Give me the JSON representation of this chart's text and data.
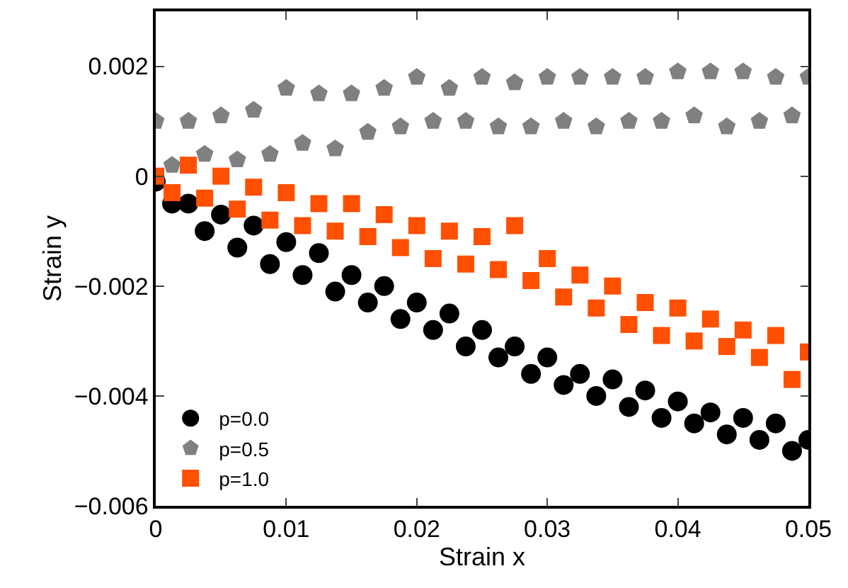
{
  "chart_data": {
    "type": "scatter",
    "xlabel": "Strain x",
    "ylabel": "Strain y",
    "x": [
      0,
      0.00125,
      0.0025,
      0.00375,
      0.005,
      0.00625,
      0.0075,
      0.00875,
      0.01,
      0.01125,
      0.0125,
      0.01375,
      0.015,
      0.01625,
      0.0175,
      0.01875,
      0.02,
      0.02125,
      0.0225,
      0.02375,
      0.025,
      0.02625,
      0.0275,
      0.02875,
      0.03,
      0.03125,
      0.0325,
      0.03375,
      0.035,
      0.03625,
      0.0375,
      0.03875,
      0.04,
      0.04125,
      0.0425,
      0.04375,
      0.045,
      0.04625,
      0.0475,
      0.04875,
      0.05
    ],
    "series": [
      {
        "name": "p=0.0",
        "color": "#000000",
        "marker": "circle",
        "values": [
          -0.0001,
          -0.0005,
          -0.0005,
          -0.001,
          -0.0007,
          -0.0013,
          -0.0009,
          -0.0016,
          -0.0012,
          -0.0018,
          -0.0014,
          -0.0021,
          -0.0018,
          -0.0023,
          -0.002,
          -0.0026,
          -0.0023,
          -0.0028,
          -0.0025,
          -0.0031,
          -0.0028,
          -0.0033,
          -0.0031,
          -0.0036,
          -0.0033,
          -0.0038,
          -0.0036,
          -0.004,
          -0.0037,
          -0.0042,
          -0.0039,
          -0.0044,
          -0.0041,
          -0.0045,
          -0.0043,
          -0.0047,
          -0.0044,
          -0.0048,
          -0.0045,
          -0.005,
          -0.0048
        ]
      },
      {
        "name": "p=0.5",
        "color": "#808080",
        "values": [
          0.001,
          0.0002,
          0.001,
          0.0004,
          0.0011,
          0.0003,
          0.0012,
          0.0004,
          0.0016,
          0.0006,
          0.0015,
          0.0005,
          0.0015,
          0.0008,
          0.0016,
          0.0009,
          0.0018,
          0.001,
          0.0016,
          0.001,
          0.0018,
          0.0009,
          0.0017,
          0.0009,
          0.0018,
          0.001,
          0.0018,
          0.0009,
          0.0018,
          0.001,
          0.0018,
          0.001,
          0.0019,
          0.0011,
          0.0019,
          0.0009,
          0.0019,
          0.001,
          0.0018,
          0.0011,
          0.0018
        ]
      },
      {
        "name": "p=1.0",
        "color": "#ff4f00",
        "marker": "square",
        "values": [
          0.0,
          -0.0003,
          0.0002,
          -0.0004,
          0.0,
          -0.0006,
          -0.0002,
          -0.0008,
          -0.0003,
          -0.0009,
          -0.0005,
          -0.001,
          -0.0005,
          -0.0011,
          -0.0007,
          -0.0013,
          -0.0009,
          -0.0015,
          -0.001,
          -0.0016,
          -0.0011,
          -0.0017,
          -0.0009,
          -0.0019,
          -0.0015,
          -0.0022,
          -0.0018,
          -0.0024,
          -0.002,
          -0.0027,
          -0.0023,
          -0.0029,
          -0.0024,
          -0.003,
          -0.0026,
          -0.0031,
          -0.0028,
          -0.0033,
          -0.0029,
          -0.0037,
          -0.0032
        ]
      }
    ],
    "xlim": [
      0,
      0.05
    ],
    "xticks": [
      0,
      0.01,
      0.02,
      0.03,
      0.04,
      0.05
    ],
    "ylim": [
      -0.006,
      0.003
    ],
    "yticks": [
      {
        "value": -0.006,
        "label": "−0.006"
      },
      {
        "value": -0.004,
        "label": "−0.004"
      },
      {
        "value": -0.002,
        "label": "−0.002"
      },
      0,
      0.002
    ],
    "legend": "bottom left"
  }
}
